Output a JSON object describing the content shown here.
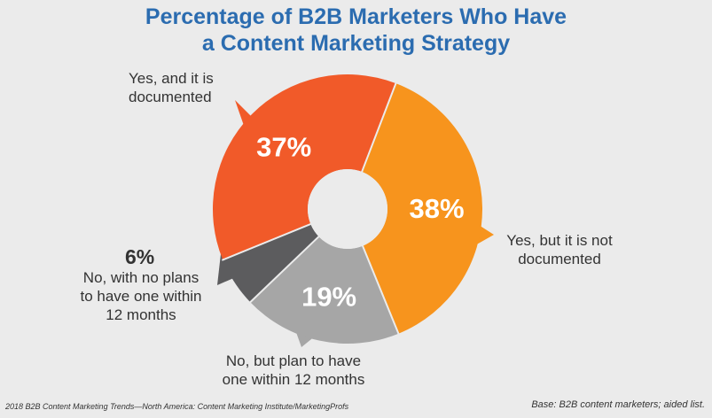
{
  "title_line1": "Percentage of B2B Marketers Who Have",
  "title_line2": "a Content Marketing Strategy",
  "chart_data": {
    "type": "pie",
    "style": "donut",
    "title": "Percentage of B2B Marketers Who Have a Content Marketing Strategy",
    "unit": "%",
    "slices": [
      {
        "label": "Yes, but it is not documented",
        "value": 38,
        "color": "#f7941d",
        "text": "38%"
      },
      {
        "label": "No, but plan to have one within 12 months",
        "value": 19,
        "color": "#a6a6a6",
        "text": "19%"
      },
      {
        "label": "No, with no plans to have one within 12 months",
        "value": 6,
        "color": "#5c5c5e",
        "text": "6%"
      },
      {
        "label": "Yes, and it is documented",
        "value": 37,
        "color": "#f15a29",
        "text": "37%"
      }
    ]
  },
  "labels": {
    "yes_documented": [
      "Yes, and it is",
      "documented"
    ],
    "yes_not_documented": [
      "Yes, but it is not",
      "documented"
    ],
    "no_plan": [
      "No, but plan to have",
      "one within 12 months"
    ],
    "no_no_plan": [
      "No, with no plans",
      "to have one within",
      "12 months"
    ],
    "no_no_plan_pct": "6%"
  },
  "footer_left": "2018 B2B Content Marketing Trends—North America: Content Marketing Institute/MarketingProfs",
  "footer_right": "Base: B2B content marketers; aided list."
}
